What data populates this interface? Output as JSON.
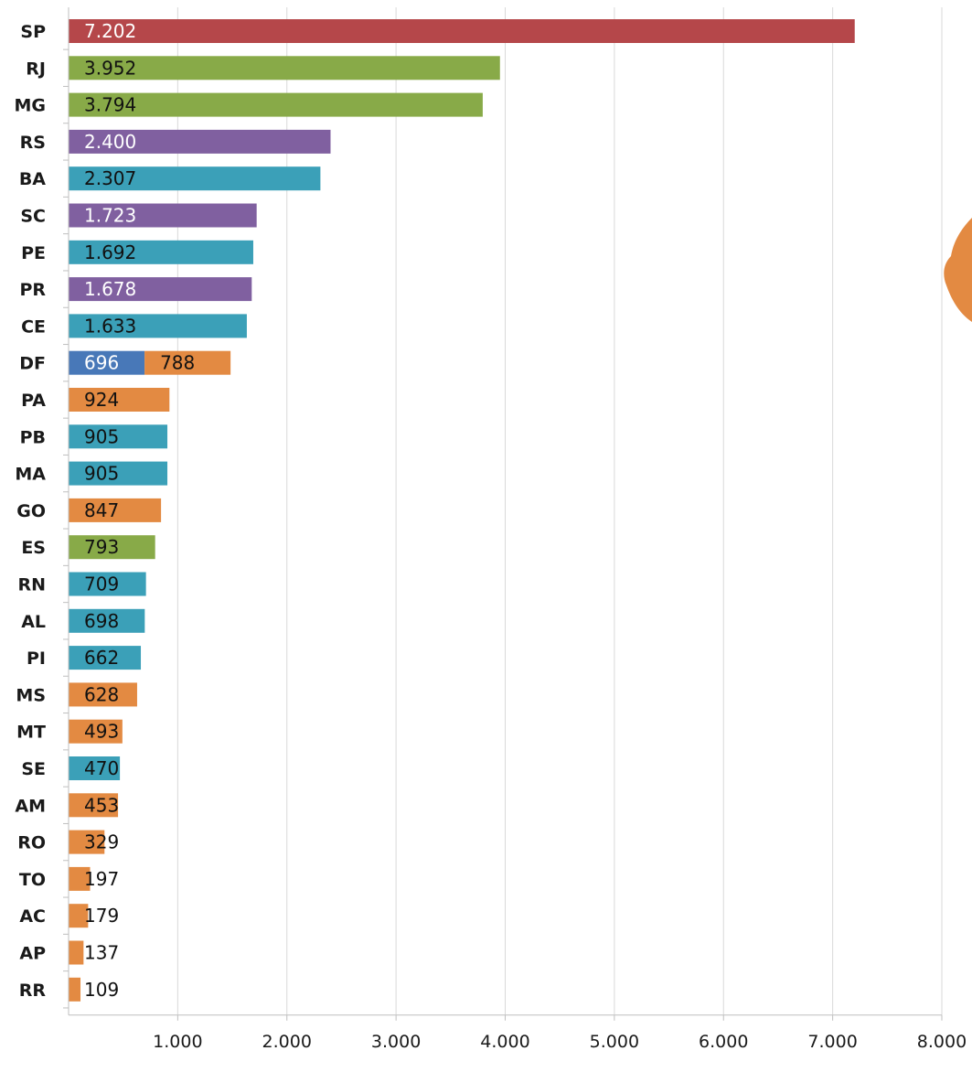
{
  "chart_data": {
    "type": "bar",
    "orientation": "horizontal",
    "stacked": true,
    "title": "",
    "xlabel": "",
    "ylabel": "",
    "xlim": [
      0,
      8000
    ],
    "x_ticks": [
      1000,
      2000,
      3000,
      4000,
      5000,
      6000,
      7000,
      8000
    ],
    "x_tick_labels": [
      "1.000",
      "2.000",
      "3.000",
      "4.000",
      "5.000",
      "6.000",
      "7.000",
      "8.000"
    ],
    "grid": "vertical",
    "legend": "none",
    "colors": {
      "red": "#b5474a",
      "green": "#88aa48",
      "purple": "#8060a0",
      "teal": "#3ba0b8",
      "blue": "#4878b8",
      "orange": "#e38a42"
    },
    "rows": [
      {
        "category": "SP",
        "segments": [
          {
            "value": 7202,
            "label": "7.202",
            "color": "red",
            "label_color": "#ffffff"
          }
        ]
      },
      {
        "category": "RJ",
        "segments": [
          {
            "value": 3952,
            "label": "3.952",
            "color": "green",
            "label_color": "#111111"
          }
        ]
      },
      {
        "category": "MG",
        "segments": [
          {
            "value": 3794,
            "label": "3.794",
            "color": "green",
            "label_color": "#111111"
          }
        ]
      },
      {
        "category": "RS",
        "segments": [
          {
            "value": 2400,
            "label": "2.400",
            "color": "purple",
            "label_color": "#ffffff"
          }
        ]
      },
      {
        "category": "BA",
        "segments": [
          {
            "value": 2307,
            "label": "2.307",
            "color": "teal",
            "label_color": "#111111"
          }
        ]
      },
      {
        "category": "SC",
        "segments": [
          {
            "value": 1723,
            "label": "1.723",
            "color": "purple",
            "label_color": "#ffffff"
          }
        ]
      },
      {
        "category": "PE",
        "segments": [
          {
            "value": 1692,
            "label": "1.692",
            "color": "teal",
            "label_color": "#111111"
          }
        ]
      },
      {
        "category": "PR",
        "segments": [
          {
            "value": 1678,
            "label": "1.678",
            "color": "purple",
            "label_color": "#ffffff"
          }
        ]
      },
      {
        "category": "CE",
        "segments": [
          {
            "value": 1633,
            "label": "1.633",
            "color": "teal",
            "label_color": "#111111"
          }
        ]
      },
      {
        "category": "DF",
        "segments": [
          {
            "value": 696,
            "label": "696",
            "color": "blue",
            "label_color": "#ffffff"
          },
          {
            "value": 788,
            "label": "788",
            "color": "orange",
            "label_color": "#111111"
          }
        ]
      },
      {
        "category": "PA",
        "segments": [
          {
            "value": 924,
            "label": "924",
            "color": "orange",
            "label_color": "#111111"
          }
        ]
      },
      {
        "category": "PB",
        "segments": [
          {
            "value": 905,
            "label": "905",
            "color": "teal",
            "label_color": "#111111"
          }
        ]
      },
      {
        "category": "MA",
        "segments": [
          {
            "value": 905,
            "label": "905",
            "color": "teal",
            "label_color": "#111111"
          }
        ]
      },
      {
        "category": "GO",
        "segments": [
          {
            "value": 847,
            "label": "847",
            "color": "orange",
            "label_color": "#111111"
          }
        ]
      },
      {
        "category": "ES",
        "segments": [
          {
            "value": 793,
            "label": "793",
            "color": "green",
            "label_color": "#111111"
          }
        ]
      },
      {
        "category": "RN",
        "segments": [
          {
            "value": 709,
            "label": "709",
            "color": "teal",
            "label_color": "#111111"
          }
        ]
      },
      {
        "category": "AL",
        "segments": [
          {
            "value": 698,
            "label": "698",
            "color": "teal",
            "label_color": "#111111"
          }
        ]
      },
      {
        "category": "PI",
        "segments": [
          {
            "value": 662,
            "label": "662",
            "color": "teal",
            "label_color": "#111111"
          }
        ]
      },
      {
        "category": "MS",
        "segments": [
          {
            "value": 628,
            "label": "628",
            "color": "orange",
            "label_color": "#111111"
          }
        ]
      },
      {
        "category": "MT",
        "segments": [
          {
            "value": 493,
            "label": "493",
            "color": "orange",
            "label_color": "#111111"
          }
        ]
      },
      {
        "category": "SE",
        "segments": [
          {
            "value": 470,
            "label": "470",
            "color": "teal",
            "label_color": "#111111"
          }
        ]
      },
      {
        "category": "AM",
        "segments": [
          {
            "value": 453,
            "label": "453",
            "color": "orange",
            "label_color": "#111111"
          }
        ]
      },
      {
        "category": "RO",
        "segments": [
          {
            "value": 329,
            "label": "329",
            "color": "orange",
            "label_color": "#111111"
          }
        ]
      },
      {
        "category": "TO",
        "segments": [
          {
            "value": 197,
            "label": "197",
            "color": "orange",
            "label_color": "#111111"
          }
        ]
      },
      {
        "category": "AC",
        "segments": [
          {
            "value": 179,
            "label": "179",
            "color": "orange",
            "label_color": "#111111"
          }
        ]
      },
      {
        "category": "AP",
        "segments": [
          {
            "value": 137,
            "label": "137",
            "color": "orange",
            "label_color": "#111111"
          }
        ]
      },
      {
        "category": "RR",
        "segments": [
          {
            "value": 109,
            "label": "109",
            "color": "orange",
            "label_color": "#111111"
          }
        ]
      }
    ]
  },
  "decoration": {
    "map_fragment_color": "#e38a42",
    "map_fragment_icon": "map-fragment-icon"
  }
}
